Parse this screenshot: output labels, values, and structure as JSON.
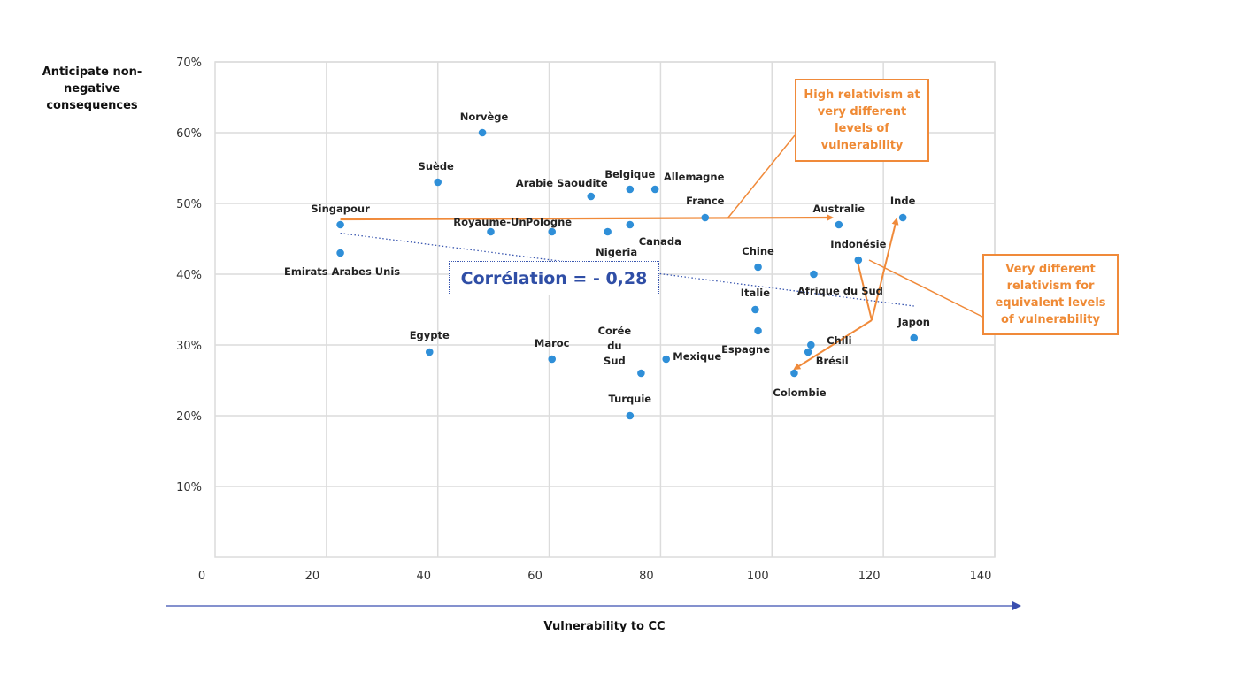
{
  "chart_data": {
    "type": "scatter",
    "xlabel": "Vulnerability to CC",
    "ylabel": "Anticipate non-negative consequences",
    "xlim": [
      0,
      140
    ],
    "ylim": [
      0,
      70
    ],
    "xticks": [
      "0",
      "20",
      "40",
      "60",
      "80",
      "100",
      "120",
      "140"
    ],
    "yticks": [
      "10%",
      "20%",
      "30%",
      "40%",
      "50%",
      "60%",
      "70%"
    ],
    "grid": true,
    "points": [
      {
        "label": "Norvège",
        "x": 48,
        "y": 60
      },
      {
        "label": "Suède",
        "x": 40,
        "y": 53
      },
      {
        "label": "Singapour",
        "x": 22.5,
        "y": 47
      },
      {
        "label": "Emirats Arabes Unis",
        "x": 22.5,
        "y": 43
      },
      {
        "label": "Royaume-Uni",
        "x": 49.5,
        "y": 46
      },
      {
        "label": "Pologne",
        "x": 60.5,
        "y": 46
      },
      {
        "label": "Arabie Saoudite",
        "x": 67.5,
        "y": 51
      },
      {
        "label": "Belgique",
        "x": 74.5,
        "y": 52
      },
      {
        "label": "Allemagne",
        "x": 79,
        "y": 52
      },
      {
        "label": "France",
        "x": 88,
        "y": 48
      },
      {
        "label": "Nigeria",
        "x": 70.5,
        "y": 46
      },
      {
        "label": "Canada",
        "x": 74.5,
        "y": 47
      },
      {
        "label": "Australie",
        "x": 112,
        "y": 47
      },
      {
        "label": "Inde",
        "x": 123.5,
        "y": 48
      },
      {
        "label": "Chine",
        "x": 97.5,
        "y": 41
      },
      {
        "label": "Indonésie",
        "x": 115.5,
        "y": 42
      },
      {
        "label": "Afrique du Sud",
        "x": 107.5,
        "y": 40
      },
      {
        "label": "Italie",
        "x": 97,
        "y": 35
      },
      {
        "label": "Espagne",
        "x": 97.5,
        "y": 32
      },
      {
        "label": "Japon",
        "x": 125.5,
        "y": 31
      },
      {
        "label": "Chili",
        "x": 107,
        "y": 30
      },
      {
        "label": "Brésil",
        "x": 106.5,
        "y": 29
      },
      {
        "label": "Colombie",
        "x": 104,
        "y": 26
      },
      {
        "label": "Egypte",
        "x": 38.5,
        "y": 29
      },
      {
        "label": "Maroc",
        "x": 60.5,
        "y": 28
      },
      {
        "label": "Corée du Sud",
        "x": 76.5,
        "y": 26
      },
      {
        "label": "Mexique",
        "x": 81,
        "y": 28
      },
      {
        "label": "Turquie",
        "x": 74.5,
        "y": 20
      }
    ],
    "trendline": {
      "from": [
        22.5,
        45.8
      ],
      "to": [
        125.5,
        35.5
      ]
    },
    "annotation": "Corrélation = - 0,28",
    "point_color": "#2f8fd8",
    "arrow_color": "#f08a3a",
    "trend_color": "#3a57b0"
  },
  "callouts": {
    "high_relativism": "High relativism at very different levels of vulnerability",
    "very_different": "Very different relativism for equivalent levels of vulnerability"
  }
}
